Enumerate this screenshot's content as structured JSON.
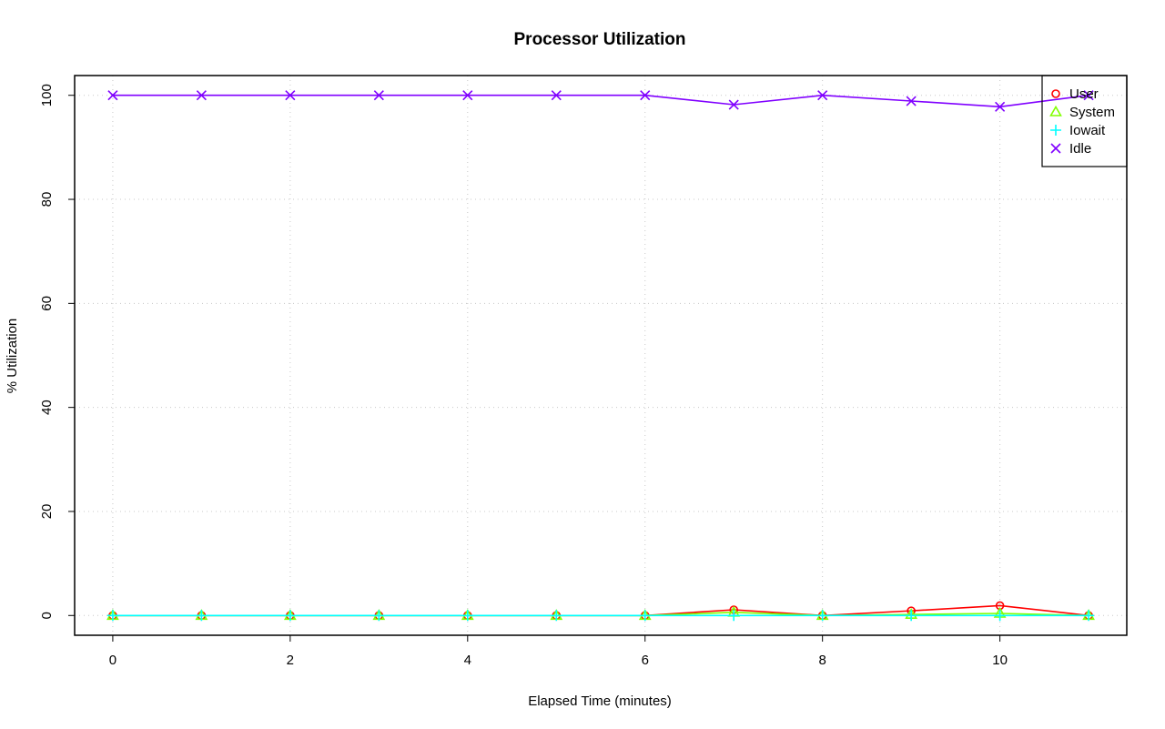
{
  "chart_data": {
    "type": "line",
    "title": "Processor Utilization",
    "xlabel": "Elapsed Time (minutes)",
    "ylabel": "% Utilization",
    "xlim": [
      -0.43,
      11.43
    ],
    "ylim": [
      -3.8,
      103.8
    ],
    "x_ticks": [
      0,
      2,
      4,
      6,
      8,
      10
    ],
    "y_ticks": [
      0,
      20,
      40,
      60,
      80,
      100
    ],
    "grid": true,
    "legend_position": "top-right",
    "x": [
      0,
      1,
      2,
      3,
      4,
      5,
      6,
      7,
      8,
      9,
      10,
      11
    ],
    "series": [
      {
        "name": "User",
        "marker": "circle",
        "color": "#ff0000",
        "values": [
          0,
          0,
          0,
          0,
          0,
          0,
          0,
          1.1,
          0,
          0.9,
          1.9,
          0
        ]
      },
      {
        "name": "System",
        "marker": "triangle",
        "color": "#80ff00",
        "values": [
          0,
          0,
          0,
          0,
          0,
          0,
          0,
          0.6,
          0,
          0.2,
          0.4,
          0
        ]
      },
      {
        "name": "Iowait",
        "marker": "plus",
        "color": "#00ffff",
        "values": [
          0,
          0,
          0,
          0,
          0,
          0,
          0,
          0,
          0,
          0,
          0,
          0
        ]
      },
      {
        "name": "Idle",
        "marker": "cross",
        "color": "#8000ff",
        "values": [
          100,
          100,
          100,
          100,
          100,
          100,
          100,
          98.2,
          100,
          98.9,
          97.8,
          100
        ]
      }
    ]
  }
}
